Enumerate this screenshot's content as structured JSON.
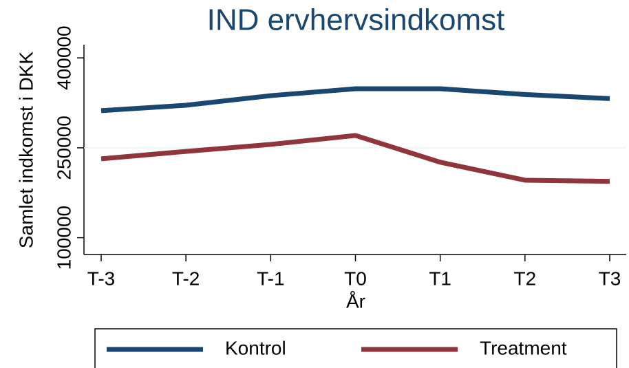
{
  "chart_data": {
    "type": "line",
    "title": "IND ervhervsindkomst",
    "xlabel": "År",
    "ylabel": "Samlet indkomst i DKK",
    "categories": [
      "T-3",
      "T-2",
      "T-1",
      "T0",
      "T1",
      "T2",
      "T3"
    ],
    "series": [
      {
        "name": "Kontrol",
        "color": "#1a476f",
        "values": [
          312000,
          321000,
          337000,
          348500,
          348500,
          339000,
          332000
        ]
      },
      {
        "name": "Treatment",
        "color": "#90353b",
        "values": [
          231700,
          244000,
          255700,
          270600,
          226000,
          196000,
          194000
        ]
      }
    ],
    "ylim": [
      72000,
      422000
    ],
    "yticks": [
      100000,
      250000,
      400000
    ],
    "grid": true,
    "legend": "bottom"
  }
}
